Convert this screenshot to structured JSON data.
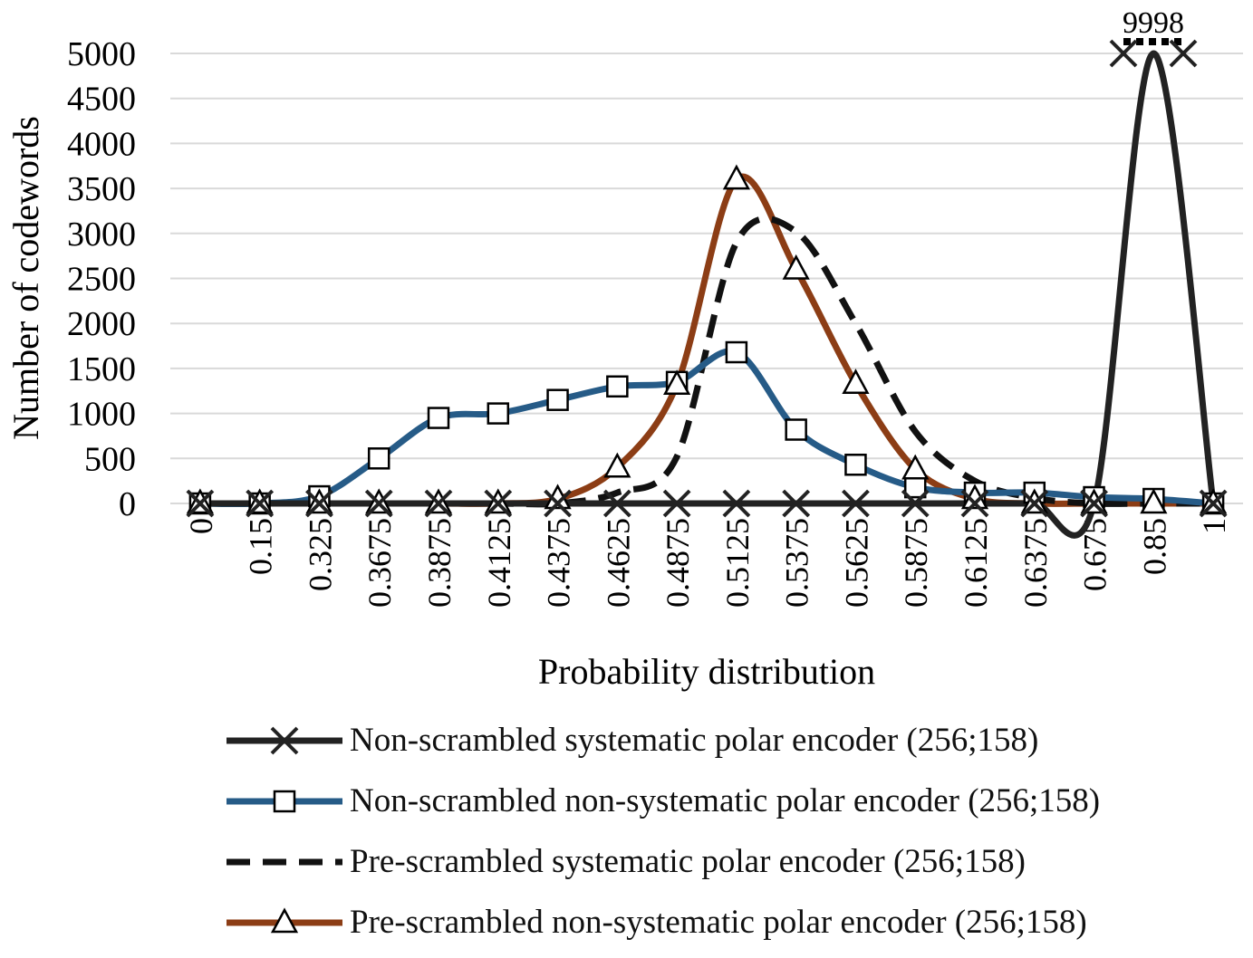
{
  "chart_data": {
    "type": "line",
    "title": "",
    "xlabel": "Probability distribution",
    "ylabel": "Number of codewords",
    "ylim": [
      0,
      5000
    ],
    "yticks": [
      0,
      500,
      1000,
      1500,
      2000,
      2500,
      3000,
      3500,
      4000,
      4500,
      5000
    ],
    "grid": true,
    "legend_position": "bottom",
    "categories": [
      "0",
      "0.15",
      "0.325",
      "0.3675",
      "0.3875",
      "0.4125",
      "0.4375",
      "0.4625",
      "0.4875",
      "0.5125",
      "0.5375",
      "0.5625",
      "0.5875",
      "0.6125",
      "0.6375",
      "0.675",
      "0.85",
      "1"
    ],
    "annotation": {
      "text": "9998",
      "category": "0.85",
      "note": "off-scale peak value"
    },
    "series": [
      {
        "name": "Non-scrambled systematic polar encoder (256;158)",
        "color": "#222222",
        "style": "solid",
        "marker": "x",
        "values": [
          0,
          0,
          0,
          0,
          0,
          0,
          0,
          0,
          0,
          0,
          0,
          0,
          0,
          0,
          0,
          0,
          9998,
          0
        ],
        "marker_indices": [
          0,
          1,
          2,
          3,
          4,
          5,
          6,
          7,
          8,
          9,
          10,
          11,
          12,
          13,
          14,
          15,
          17
        ]
      },
      {
        "name": "Non-scrambled non-systematic polar encoder (256;158)",
        "color": "#265b87",
        "style": "solid",
        "marker": "square",
        "values": [
          0,
          0,
          80,
          500,
          950,
          1000,
          1150,
          1300,
          1350,
          1680,
          820,
          430,
          180,
          120,
          120,
          70,
          50,
          0
        ],
        "marker_indices": [
          0,
          1,
          2,
          3,
          4,
          5,
          6,
          7,
          8,
          9,
          10,
          11,
          12,
          13,
          14,
          15,
          16,
          17
        ]
      },
      {
        "name": "Pre-scrambled systematic polar encoder (256;158)",
        "color": "#111111",
        "style": "dashed",
        "marker": "none",
        "values": [
          0,
          0,
          0,
          0,
          0,
          0,
          0,
          120,
          520,
          2900,
          3020,
          2000,
          800,
          250,
          60,
          0,
          0,
          0
        ],
        "marker_indices": []
      },
      {
        "name": "Pre-scrambled non-systematic polar encoder (256;158)",
        "color": "#8c3d15",
        "style": "solid",
        "marker": "triangle",
        "values": [
          0,
          0,
          0,
          0,
          0,
          0,
          50,
          400,
          1320,
          3600,
          2600,
          1330,
          380,
          50,
          0,
          0,
          0,
          0
        ],
        "marker_indices": [
          0,
          1,
          2,
          3,
          4,
          5,
          6,
          7,
          8,
          9,
          10,
          11,
          12,
          13,
          14,
          15,
          16,
          17
        ]
      }
    ]
  }
}
